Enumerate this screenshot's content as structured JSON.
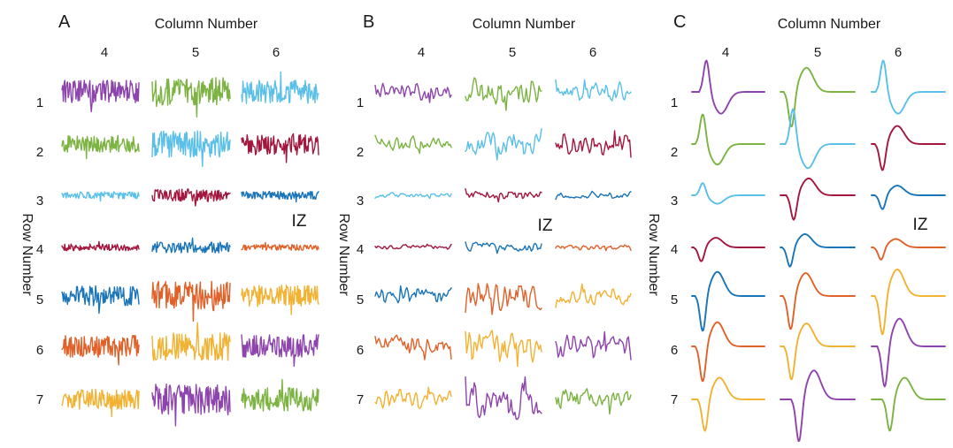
{
  "colors": {
    "purple": "#8e44ad",
    "green": "#7cb342",
    "lightblue": "#5bc0e8",
    "crimson": "#a3173e",
    "blue": "#1a74b8",
    "orange": "#e0622a",
    "yellow": "#f2b233"
  },
  "chart_data": {
    "type": "multi-panel trace grid",
    "shared": {
      "column_title": "Column Number",
      "row_title": "Row Number",
      "columns": [
        "4",
        "5",
        "6"
      ],
      "rows": [
        "1",
        "2",
        "3",
        "4",
        "5",
        "6",
        "7"
      ],
      "annotation": "IZ",
      "color_grid": [
        [
          "purple",
          "green",
          "lightblue"
        ],
        [
          "green",
          "lightblue",
          "crimson"
        ],
        [
          "lightblue",
          "crimson",
          "blue"
        ],
        [
          "crimson",
          "blue",
          "orange"
        ],
        [
          "blue",
          "orange",
          "yellow"
        ],
        [
          "orange",
          "yellow",
          "purple"
        ],
        [
          "yellow",
          "purple",
          "green"
        ]
      ]
    },
    "panels": [
      {
        "label": "A",
        "kind": "raw",
        "amplitude_grid": [
          [
            0.75,
            0.95,
            0.75
          ],
          [
            0.55,
            0.85,
            0.7
          ],
          [
            0.22,
            0.4,
            0.25
          ],
          [
            0.22,
            0.35,
            0.18
          ],
          [
            0.65,
            0.95,
            0.7
          ],
          [
            0.7,
            0.9,
            0.75
          ],
          [
            0.65,
            1.0,
            0.75
          ]
        ]
      },
      {
        "label": "B",
        "kind": "filtered",
        "amplitude_grid": [
          [
            0.4,
            0.7,
            0.45
          ],
          [
            0.35,
            0.6,
            0.5
          ],
          [
            0.12,
            0.25,
            0.15
          ],
          [
            0.12,
            0.22,
            0.12
          ],
          [
            0.38,
            0.7,
            0.45
          ],
          [
            0.5,
            0.75,
            0.55
          ],
          [
            0.45,
            0.85,
            0.55
          ]
        ]
      },
      {
        "label": "C",
        "kind": "waveform",
        "waveforms": [
          [
            {
              "delay": 0.1,
              "amp": 0.9
            },
            {
              "delay": 0.05,
              "amp": -1.0
            },
            {
              "delay": 0.06,
              "amp": 0.9
            }
          ],
          [
            {
              "delay": 0.05,
              "amp": 0.85
            },
            {
              "delay": 0.07,
              "amp": 1.0
            },
            {
              "delay": 0.05,
              "amp": -0.75
            }
          ],
          [
            {
              "delay": 0.05,
              "amp": 0.35
            },
            {
              "delay": 0.08,
              "amp": -0.7
            },
            {
              "delay": 0.05,
              "amp": -0.4
            }
          ],
          [
            {
              "delay": 0.03,
              "amp": -0.4
            },
            {
              "delay": 0.03,
              "amp": -0.55
            },
            {
              "delay": 0.03,
              "amp": -0.35
            }
          ],
          [
            {
              "delay": 0.05,
              "amp": -1.0
            },
            {
              "delay": 0.04,
              "amp": -0.95
            },
            {
              "delay": 0.05,
              "amp": -1.1
            }
          ],
          [
            {
              "delay": 0.05,
              "amp": -1.0
            },
            {
              "delay": 0.05,
              "amp": -0.95
            },
            {
              "delay": 0.08,
              "amp": -1.15
            }
          ],
          [
            {
              "delay": 0.08,
              "amp": -0.9
            },
            {
              "delay": 0.15,
              "amp": -1.2
            },
            {
              "delay": 0.15,
              "amp": -0.9
            }
          ]
        ]
      }
    ]
  }
}
